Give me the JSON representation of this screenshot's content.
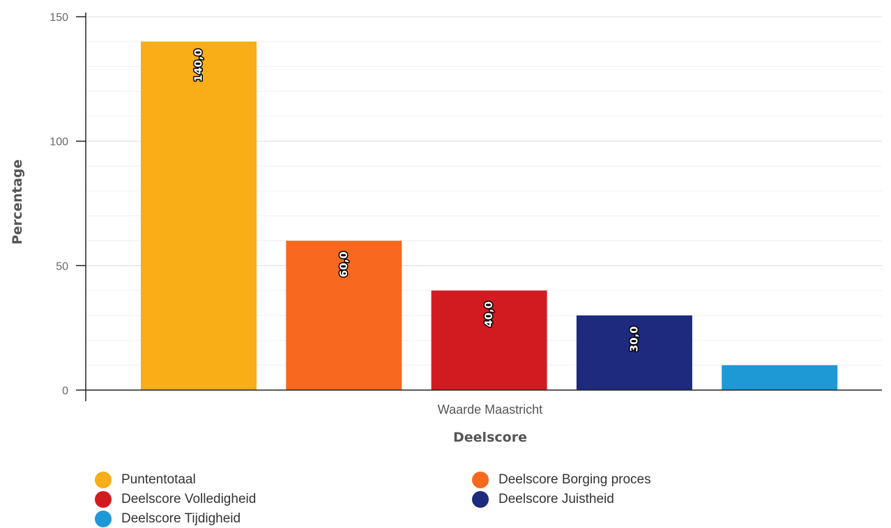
{
  "chart_data": {
    "type": "bar",
    "xlabel": "Deelscore",
    "ylabel": "Percentage",
    "categories": [
      "Waarde Maastricht"
    ],
    "ylim": [
      0,
      150
    ],
    "yticks": [
      0,
      50,
      100,
      150
    ],
    "grid": true,
    "legend_position": "bottom",
    "series": [
      {
        "name": "Puntentotaal",
        "values": [
          140
        ],
        "color": "#f9ad17",
        "label": "140,0"
      },
      {
        "name": "Deelscore Borging proces",
        "values": [
          60
        ],
        "color": "#f8681f",
        "label": "60,0"
      },
      {
        "name": "Deelscore Volledigheid",
        "values": [
          40
        ],
        "color": "#d11b21",
        "label": "40,0"
      },
      {
        "name": "Deelscore Juistheid",
        "values": [
          30
        ],
        "color": "#1e2a7e",
        "label": "30,0"
      },
      {
        "name": "Deelscore Tijdigheid",
        "values": [
          10
        ],
        "color": "#1f98d6",
        "label": ""
      }
    ]
  }
}
